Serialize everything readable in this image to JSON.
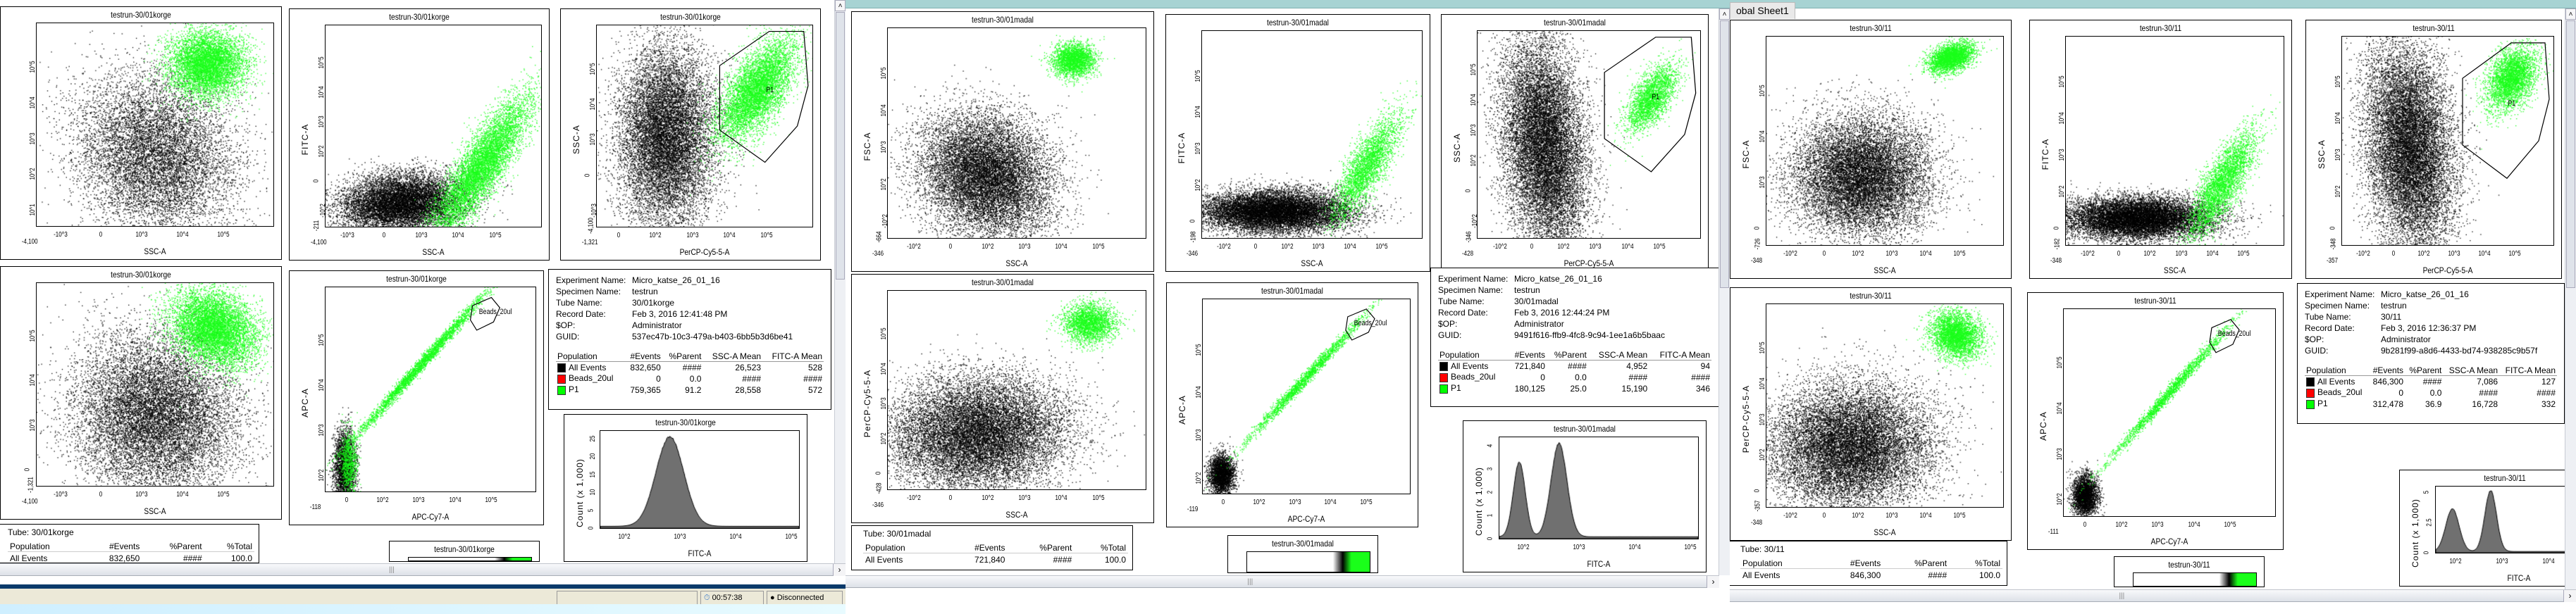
{
  "global_tab": "obal Sheet1",
  "status": {
    "time": "00:57:38",
    "connection": "Disconnected"
  },
  "windows": [
    {
      "name": "30/01korge",
      "plot_title": "testrun-30/01korge",
      "plots": [
        {
          "ylabel": "",
          "xlabel": "SSC-A",
          "xticks": [
            "-10^3",
            "0",
            "10^3",
            "10^4",
            "10^5"
          ],
          "yticks": [
            "10^1",
            "10^2",
            "10^3",
            "10^4",
            "10^5"
          ],
          "xmin": "-4,100",
          "ymin": ""
        },
        {
          "ylabel": "FITC-A",
          "xlabel": "SSC-A",
          "xticks": [
            "-10^3",
            "0",
            "10^3",
            "10^4",
            "10^5"
          ],
          "yticks": [
            "-10^2",
            "0",
            "10^2",
            "10^3",
            "10^4",
            "10^5"
          ],
          "xmin": "-4,100",
          "ymin": "-211"
        },
        {
          "ylabel": "SSC-A",
          "xlabel": "PerCP-Cy5-5-A",
          "xticks": [
            "0",
            "10^2",
            "10^3",
            "10^4",
            "10^5"
          ],
          "yticks": [
            "-10^3",
            "0",
            "10^3",
            "10^4",
            "10^5"
          ],
          "xmin": "-1,321",
          "ymin": "-4,100",
          "gate": "P1"
        },
        {
          "ylabel": "",
          "xlabel": "SSC-A",
          "xticks": [
            "-10^3",
            "0",
            "10^3",
            "10^4",
            "10^5"
          ],
          "yticks": [
            "0",
            "10^3",
            "10^4",
            "10^5"
          ],
          "xmin": "-4,100",
          "ymin": "-1,321"
        },
        {
          "ylabel": "APC-A",
          "xlabel": "APC-Cy7-A",
          "xticks": [
            "0",
            "10^2",
            "10^3",
            "10^4",
            "10^5"
          ],
          "yticks": [
            "10^2",
            "10^3",
            "10^4",
            "10^5"
          ],
          "xmin": "-118",
          "ymin": "",
          "gate": "Beads_20ul"
        },
        {
          "ylabel": "Count (x 1,000)",
          "xlabel": "FITC-A",
          "xticks": [
            "10^2",
            "10^3",
            "10^4",
            "10^5"
          ],
          "yticks": [
            "0",
            "5",
            "10",
            "15",
            "20",
            "25"
          ],
          "xmin": "",
          "ymin": ""
        }
      ],
      "stats": {
        "experiment_label": "Experiment Name:",
        "experiment": "Micro_katse_26_01_16",
        "specimen_label": "Specimen Name:",
        "specimen": "testrun",
        "tube_label": "Tube Name:",
        "tube": "30/01korge",
        "date_label": "Record Date:",
        "date": "Feb 3, 2016 12:41:48 PM",
        "op_label": "$OP:",
        "op": "Administrator",
        "guid_label": "GUID:",
        "guid": "537ec47b-10c3-479a-b403-6bb5b3d6be41",
        "headers": [
          "Population",
          "#Events",
          "%Parent",
          "SSC-A Mean",
          "FITC-A Mean"
        ],
        "rows": [
          {
            "name": "All Events",
            "color": "#000000",
            "events": "832,650",
            "parent": "####",
            "ssc": "26,523",
            "fitc": "528"
          },
          {
            "name": "Beads_20ul",
            "color": "#ff0000",
            "events": "0",
            "parent": "0.0",
            "ssc": "####",
            "fitc": "####"
          },
          {
            "name": "P1",
            "color": "#00ff00",
            "events": "759,365",
            "parent": "91.2",
            "ssc": "28,558",
            "fitc": "572"
          }
        ]
      },
      "tube_table": {
        "label": "Tube:",
        "tube": "30/01korge",
        "headers": [
          "Population",
          "#Events",
          "%Parent",
          "%Total"
        ],
        "row": [
          "All Events",
          "832,650",
          "####",
          "100.0"
        ]
      }
    },
    {
      "name": "30/01madal",
      "plot_title": "testrun-30/01madal",
      "plots": [
        {
          "ylabel": "FSC-A",
          "xlabel": "SSC-A",
          "xticks": [
            "-10^2",
            "0",
            "10^2",
            "10^3",
            "10^4",
            "10^5"
          ],
          "yticks": [
            "-10^2",
            "10^2",
            "10^3",
            "10^4",
            "10^5"
          ],
          "xmin": "-346",
          "ymin": "-664"
        },
        {
          "ylabel": "FITC-A",
          "xlabel": "SSC-A",
          "xticks": [
            "-10^2",
            "0",
            "10^2",
            "10^3",
            "10^4",
            "10^5"
          ],
          "yticks": [
            "0",
            "10^2",
            "10^3",
            "10^4",
            "10^5"
          ],
          "xmin": "-346",
          "ymin": "-198"
        },
        {
          "ylabel": "SSC-A",
          "xlabel": "PerCP-Cy5-5-A",
          "xticks": [
            "-10^2",
            "0",
            "10^2",
            "10^3",
            "10^4",
            "10^5"
          ],
          "yticks": [
            "-10^2",
            "0",
            "10^2",
            "10^3",
            "10^4",
            "10^5"
          ],
          "xmin": "-428",
          "ymin": "-346",
          "gate": "P1"
        },
        {
          "ylabel": "PerCP-Cy5-5-A",
          "xlabel": "SSC-A",
          "xticks": [
            "-10^2",
            "0",
            "10^2",
            "10^3",
            "10^4",
            "10^5"
          ],
          "yticks": [
            "0",
            "10^2",
            "10^3",
            "10^4",
            "10^5"
          ],
          "xmin": "-346",
          "ymin": "-428"
        },
        {
          "ylabel": "APC-A",
          "xlabel": "APC-Cy7-A",
          "xticks": [
            "0",
            "10^2",
            "10^3",
            "10^4",
            "10^5"
          ],
          "yticks": [
            "10^2",
            "10^3",
            "10^4",
            "10^5"
          ],
          "xmin": "-119",
          "ymin": "",
          "gate": "Beads_20ul"
        },
        {
          "ylabel": "Count (x 1,000)",
          "xlabel": "FITC-A",
          "xticks": [
            "10^2",
            "10^3",
            "10^4",
            "10^5"
          ],
          "yticks": [
            "0",
            "1",
            "2",
            "3",
            "4"
          ],
          "xmin": "",
          "ymin": ""
        }
      ],
      "stats": {
        "experiment_label": "Experiment Name:",
        "experiment": "Micro_katse_26_01_16",
        "specimen_label": "Specimen Name:",
        "specimen": "testrun",
        "tube_label": "Tube Name:",
        "tube": "30/01madal",
        "date_label": "Record Date:",
        "date": "Feb 3, 2016 12:44:24 PM",
        "op_label": "$OP:",
        "op": "Administrator",
        "guid_label": "GUID:",
        "guid": "9491f616-ffb9-4fc8-9c94-1ee1a6b5baac",
        "headers": [
          "Population",
          "#Events",
          "%Parent",
          "SSC-A Mean",
          "FITC-A Mean"
        ],
        "rows": [
          {
            "name": "All Events",
            "color": "#000000",
            "events": "721,840",
            "parent": "####",
            "ssc": "4,952",
            "fitc": "94"
          },
          {
            "name": "Beads_20ul",
            "color": "#ff0000",
            "events": "0",
            "parent": "0.0",
            "ssc": "####",
            "fitc": "####"
          },
          {
            "name": "P1",
            "color": "#00ff00",
            "events": "180,125",
            "parent": "25.0",
            "ssc": "15,190",
            "fitc": "346"
          }
        ]
      },
      "tube_table": {
        "label": "Tube:",
        "tube": "30/01madal",
        "headers": [
          "Population",
          "#Events",
          "%Parent",
          "%Total"
        ],
        "row": [
          "All Events",
          "721,840",
          "####",
          "100.0"
        ]
      }
    },
    {
      "name": "30/11",
      "plot_title": "testrun-30/11",
      "plots": [
        {
          "ylabel": "FSC-A",
          "xlabel": "SSC-A",
          "xticks": [
            "-10^2",
            "0",
            "10^2",
            "10^3",
            "10^4",
            "10^5"
          ],
          "yticks": [
            "0",
            "10^3",
            "10^4",
            "10^5"
          ],
          "xmin": "-348",
          "ymin": "-726"
        },
        {
          "ylabel": "FITC-A",
          "xlabel": "SSC-A",
          "xticks": [
            "-10^2",
            "0",
            "10^2",
            "10^3",
            "10^4",
            "10^5"
          ],
          "yticks": [
            "0",
            "10^2",
            "10^3",
            "10^4",
            "10^5"
          ],
          "xmin": "-348",
          "ymin": "-182"
        },
        {
          "ylabel": "SSC-A",
          "xlabel": "PerCP-Cy5-5-A",
          "xticks": [
            "-10^2",
            "0",
            "10^2",
            "10^3",
            "10^4",
            "10^5"
          ],
          "yticks": [
            "0",
            "10^2",
            "10^3",
            "10^4",
            "10^5"
          ],
          "xmin": "-357",
          "ymin": "-348",
          "gate": "P1"
        },
        {
          "ylabel": "PerCP-Cy5-5-A",
          "xlabel": "SSC-A",
          "xticks": [
            "-10^2",
            "0",
            "10^2",
            "10^3",
            "10^4",
            "10^5"
          ],
          "yticks": [
            "0",
            "10^2",
            "10^3",
            "10^4",
            "10^5"
          ],
          "xmin": "-348",
          "ymin": "-357"
        },
        {
          "ylabel": "APC-A",
          "xlabel": "APC-Cy7-A",
          "xticks": [
            "0",
            "10^2",
            "10^3",
            "10^4",
            "10^5"
          ],
          "yticks": [
            "10^2",
            "10^3",
            "10^4",
            "10^5"
          ],
          "xmin": "-111",
          "ymin": "",
          "gate": "Beads_20ul"
        },
        {
          "ylabel": "Count (x 1,000)",
          "xlabel": "FITC-A",
          "xticks": [
            "10^2",
            "10^3",
            "10^4",
            "10^5"
          ],
          "yticks": [
            "0",
            "2.5",
            "5"
          ],
          "xmin": "",
          "ymin": ""
        }
      ],
      "stats": {
        "experiment_label": "Experiment Name:",
        "experiment": "Micro_katse_26_01_16",
        "specimen_label": "Specimen Name:",
        "specimen": "testrun",
        "tube_label": "Tube Name:",
        "tube": "30/11",
        "date_label": "Record Date:",
        "date": "Feb 3, 2016 12:36:37 PM",
        "op_label": "$OP:",
        "op": "Administrator",
        "guid_label": "GUID:",
        "guid": "9b281f99-a8d6-4433-bd74-938285c9b57f",
        "headers": [
          "Population",
          "#Events",
          "%Parent",
          "SSC-A Mean",
          "FITC-A Mean"
        ],
        "rows": [
          {
            "name": "All Events",
            "color": "#000000",
            "events": "846,300",
            "parent": "####",
            "ssc": "7,086",
            "fitc": "127"
          },
          {
            "name": "Beads_20ul",
            "color": "#ff0000",
            "events": "0",
            "parent": "0.0",
            "ssc": "####",
            "fitc": "####"
          },
          {
            "name": "P1",
            "color": "#00ff00",
            "events": "312,478",
            "parent": "36.9",
            "ssc": "16,728",
            "fitc": "332"
          }
        ]
      },
      "tube_table": {
        "label": "Tube:",
        "tube": "30/11",
        "headers": [
          "Population",
          "#Events",
          "%Parent",
          "%Total"
        ],
        "row": [
          "All Events",
          "846,300",
          "####",
          "100.0"
        ]
      }
    }
  ]
}
